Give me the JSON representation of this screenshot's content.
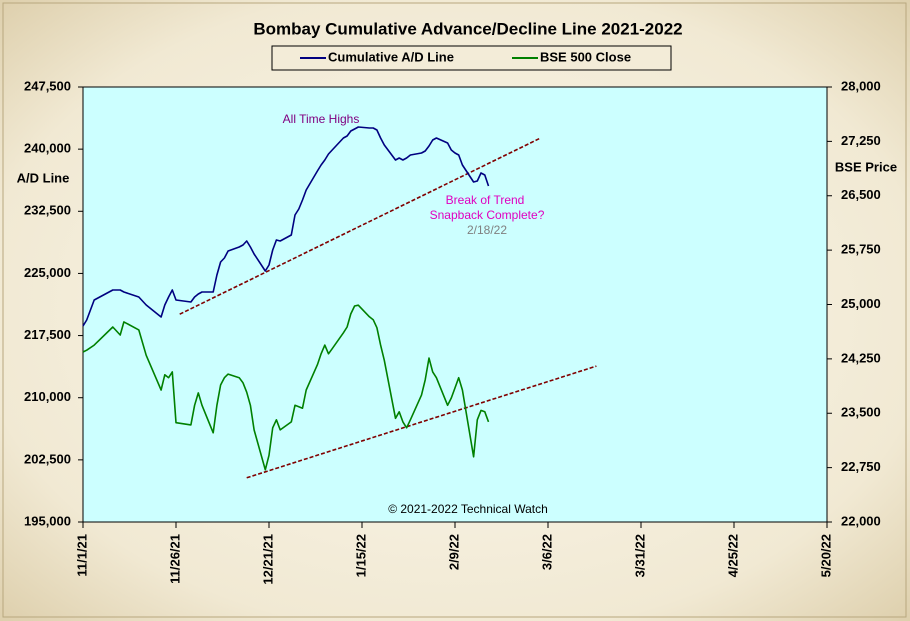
{
  "chart_data": {
    "type": "line",
    "title": "Bombay Cumulative Advance/Decline Line 2021-2022",
    "ylabel": "A/D Line",
    "y2label": "BSE Price",
    "credit": "© 2021-2022 Technical Watch",
    "legend": "top",
    "background": "#ccffff",
    "x": [
      "11/1/21",
      "11/2/21",
      "11/4/21",
      "11/9/21",
      "11/11/21",
      "11/12/21",
      "11/16/21",
      "11/18/21",
      "11/22/21",
      "11/23/21",
      "11/24/21",
      "11/25/21",
      "11/26/21",
      "11/30/21",
      "12/1/21",
      "12/2/21",
      "12/3/21",
      "12/6/21",
      "12/7/21",
      "12/8/21",
      "12/9/21",
      "12/10/21",
      "12/13/21",
      "12/14/21",
      "12/15/21",
      "12/16/21",
      "12/17/21",
      "12/20/21",
      "12/21/21",
      "12/22/21",
      "12/23/21",
      "12/24/21",
      "12/27/21",
      "12/28/21",
      "12/29/21",
      "12/30/21",
      "12/31/21",
      "1/3/22",
      "1/4/22",
      "1/5/22",
      "1/6/22",
      "1/7/22",
      "1/10/22",
      "1/11/22",
      "1/12/22",
      "1/13/22",
      "1/14/22",
      "1/17/22",
      "1/18/22",
      "1/19/22",
      "1/20/22",
      "1/21/22",
      "1/24/22",
      "1/25/22",
      "1/26/22",
      "1/27/22",
      "1/28/22",
      "1/31/22",
      "2/1/22",
      "2/2/22",
      "2/3/22",
      "2/4/22",
      "2/7/22",
      "2/8/22",
      "2/9/22",
      "2/10/22",
      "2/11/22",
      "2/14/22",
      "2/15/22",
      "2/16/22",
      "2/17/22",
      "2/18/22"
    ],
    "series": [
      {
        "name": "Cumulative A/D Line",
        "color": "#000080",
        "axis": "y",
        "values": [
          218650,
          219380,
          221790,
          223000,
          223000,
          222760,
          222160,
          221190,
          219740,
          221190,
          222160,
          223000,
          221790,
          221550,
          222160,
          222520,
          222760,
          222760,
          224810,
          226380,
          226860,
          227710,
          228190,
          228430,
          228910,
          228190,
          227350,
          225290,
          226020,
          227830,
          229030,
          228910,
          229640,
          232050,
          232780,
          233860,
          235070,
          237360,
          238090,
          238690,
          239410,
          239900,
          241350,
          241590,
          242190,
          242430,
          242670,
          242550,
          242550,
          242310,
          241350,
          240500,
          238690,
          238930,
          238690,
          238930,
          239290,
          239530,
          239780,
          240380,
          241100,
          241350,
          240740,
          239900,
          239530,
          239290,
          238090,
          236030,
          236160,
          237120,
          236880,
          235550
        ]
      },
      {
        "name": "BSE 500 Close",
        "color": "#008000",
        "axis": "y2",
        "values": [
          24345,
          24370,
          24440,
          24690,
          24580,
          24760,
          24650,
          24300,
          23820,
          24030,
          23990,
          24070,
          23370,
          23340,
          23610,
          23780,
          23610,
          23230,
          23610,
          23890,
          23990,
          24040,
          23990,
          23920,
          23790,
          23610,
          23270,
          22720,
          22920,
          23300,
          23410,
          23270,
          23380,
          23610,
          23590,
          23570,
          23820,
          24170,
          24320,
          24440,
          24320,
          24390,
          24610,
          24690,
          24870,
          24980,
          24990,
          24830,
          24790,
          24680,
          24440,
          24230,
          23430,
          23520,
          23380,
          23300,
          23410,
          23750,
          23960,
          24260,
          24070,
          23990,
          23610,
          23710,
          23850,
          23990,
          23820,
          22900,
          23410,
          23540,
          23520,
          23380
        ]
      }
    ],
    "trendlines": [
      {
        "axis": "y",
        "color": "#800000",
        "x": [
          "11/27/21",
          "3/4/22"
        ],
        "values": [
          220080,
          241350
        ]
      },
      {
        "axis": "y2",
        "color": "#800000",
        "x": [
          "12/15/21",
          "3/19/22"
        ],
        "values": [
          22610,
          24150
        ]
      }
    ],
    "annotations": [
      {
        "text": "All Time Highs",
        "color": "#800080"
      },
      {
        "text": "Break of Trend",
        "color": "#e000c0"
      },
      {
        "text": "Snapback Complete?",
        "color": "#e000c0"
      },
      {
        "text": "2/18/22",
        "color": "#808080"
      }
    ],
    "xlim": [
      "11/1/21",
      "5/20/22"
    ],
    "xticks": [
      "11/1/21",
      "11/26/21",
      "12/21/21",
      "1/15/22",
      "2/9/22",
      "3/6/22",
      "3/31/22",
      "4/25/22",
      "5/20/22"
    ],
    "ylim": [
      195000,
      247500
    ],
    "yticks": [
      {
        "value": 195000,
        "label": "195,000"
      },
      {
        "value": 202500,
        "label": "202,500"
      },
      {
        "value": 210000,
        "label": "210,000"
      },
      {
        "value": 217500,
        "label": "217,500"
      },
      {
        "value": 225000,
        "label": "225,000"
      },
      {
        "value": 232500,
        "label": "232,500"
      },
      {
        "value": 240000,
        "label": "240,000"
      },
      {
        "value": 247500,
        "label": "247,500"
      }
    ],
    "y2lim": [
      22000,
      28000
    ],
    "y2ticks": [
      {
        "value": 22000,
        "label": "22,000"
      },
      {
        "value": 22750,
        "label": "22,750"
      },
      {
        "value": 23500,
        "label": "23,500"
      },
      {
        "value": 24250,
        "label": "24,250"
      },
      {
        "value": 25000,
        "label": "25,000"
      },
      {
        "value": 25750,
        "label": "25,750"
      },
      {
        "value": 26500,
        "label": "26,500"
      },
      {
        "value": 27250,
        "label": "27,250"
      },
      {
        "value": 28000,
        "label": "28,000"
      }
    ]
  }
}
